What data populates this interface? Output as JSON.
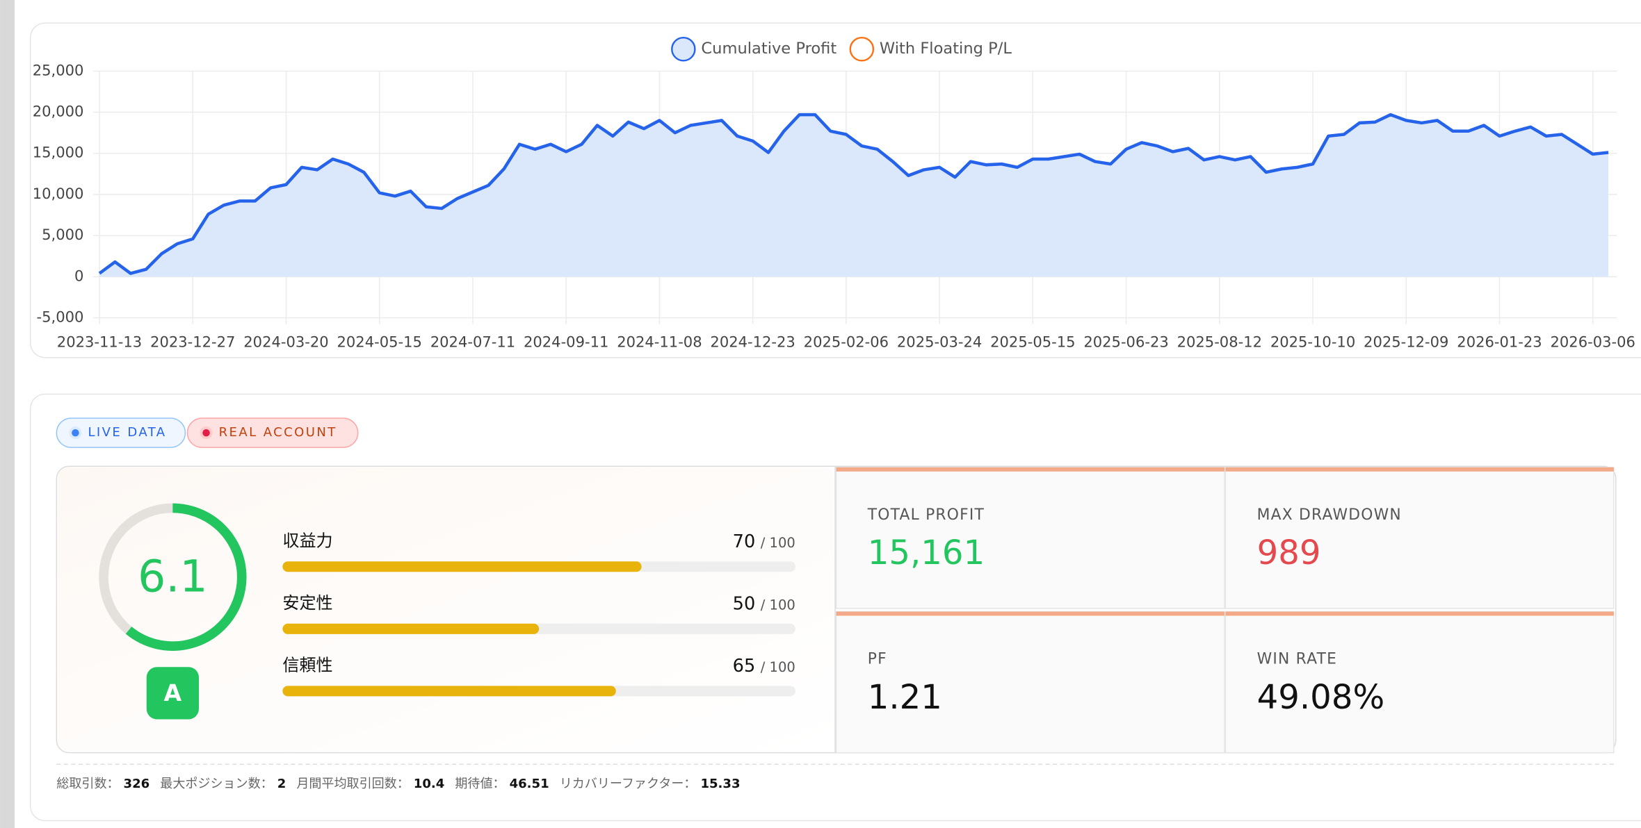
{
  "chart_data": {
    "type": "line",
    "categories": [
      "2023-11-13",
      null,
      null,
      null,
      null,
      null,
      "2023-12-27",
      null,
      null,
      null,
      null,
      null,
      "2024-03-20",
      null,
      null,
      null,
      null,
      null,
      "2024-05-15",
      null,
      null,
      null,
      null,
      null,
      "2024-07-11",
      null,
      null,
      null,
      null,
      null,
      "2024-09-11",
      null,
      null,
      null,
      null,
      null,
      "2024-11-08",
      null,
      null,
      null,
      null,
      null,
      "2024-12-23",
      null,
      null,
      null,
      null,
      null,
      "2025-02-06",
      null,
      null,
      null,
      null,
      null,
      "2025-03-24",
      null,
      null,
      null,
      null,
      null,
      "2025-05-15",
      null,
      null,
      null,
      null,
      null,
      "2025-06-23",
      null,
      null,
      null,
      null,
      null,
      "2025-08-12",
      null,
      null,
      null,
      null,
      null,
      "2025-10-10",
      null,
      null,
      null,
      null,
      null,
      "2025-12-09",
      null,
      null,
      null,
      null,
      null,
      "2026-01-23",
      null,
      null,
      null,
      null,
      null,
      "2026-03-06",
      null
    ],
    "series": [
      {
        "name": "Cumulative Profit",
        "color": "#2563eb",
        "fill": "#dbe7fb",
        "values": [
          400,
          1800,
          400,
          900,
          2800,
          4000,
          4600,
          7600,
          8700,
          9200,
          9200,
          10800,
          11200,
          13300,
          13000,
          14300,
          13700,
          12700,
          10200,
          9800,
          10400,
          8500,
          8300,
          9500,
          10300,
          11100,
          13100,
          16100,
          15500,
          16100,
          15200,
          16100,
          18400,
          17100,
          18800,
          18000,
          19000,
          17500,
          18400,
          18700,
          19000,
          17100,
          16500,
          15100,
          17700,
          19700,
          19700,
          17700,
          17300,
          15900,
          15500,
          14000,
          12300,
          13000,
          13300,
          12100,
          14000,
          13600,
          13700,
          13300,
          14300,
          14300,
          14600,
          14900,
          14000,
          13700,
          15500,
          16300,
          15900,
          15200,
          15600,
          14200,
          14600,
          14200,
          14600,
          12700,
          13100,
          13300,
          13700,
          17100,
          17300,
          18700,
          18800,
          19700,
          19000,
          18700,
          19000,
          17700,
          17700,
          18400,
          17100,
          17700,
          18200,
          17100,
          17300,
          16100,
          14900,
          15100
        ]
      },
      {
        "name": "With Floating P/L",
        "color": "#f97316",
        "values": [
          null,
          null,
          null,
          null,
          null,
          null,
          null,
          null,
          null,
          null,
          null,
          null,
          null,
          null,
          null,
          null,
          null,
          null,
          null,
          null,
          null,
          null,
          null,
          null,
          null,
          null,
          null,
          null,
          null,
          null,
          null,
          null,
          null,
          null,
          null,
          null,
          null,
          null,
          null,
          null,
          null,
          null,
          null,
          null,
          null,
          null,
          null,
          null,
          null,
          null,
          null,
          null,
          null,
          null,
          null,
          null,
          null,
          null,
          null,
          null,
          null,
          null,
          null,
          null,
          null,
          null,
          null,
          null,
          null,
          null,
          null,
          null,
          null,
          null,
          null,
          null,
          null,
          null,
          null,
          null,
          null,
          null,
          null,
          null,
          null,
          null,
          null,
          null,
          null,
          null,
          null,
          null,
          null,
          null,
          null,
          null,
          null,
          null
        ]
      }
    ],
    "ylim": [
      -5000,
      25000
    ],
    "yticks": [
      {
        "value": -5000,
        "label": "-5,000"
      },
      0,
      {
        "value": 5000,
        "label": "5,000"
      },
      {
        "value": 10000,
        "label": "10,000"
      },
      {
        "value": 15000,
        "label": "15,000"
      },
      {
        "value": 20000,
        "label": "20,000"
      },
      {
        "value": 25000,
        "label": "25,000"
      }
    ],
    "grid": true,
    "legend": "top"
  },
  "badges": [
    "LIVE DATA",
    "REAL ACCOUNT"
  ],
  "score": {
    "value": 6.1,
    "gauge_lim": [
      0,
      10
    ],
    "grade": "A",
    "color": "#22c55e"
  },
  "ratings": [
    {
      "label": "収益力",
      "value": 70,
      "max": {
        "value": 100,
        "label": "/ 100"
      }
    },
    {
      "label": "安定性",
      "value": 50,
      "max": {
        "value": 100,
        "label": "/ 100"
      }
    },
    {
      "label": "信頼性",
      "value": 65,
      "max": {
        "value": 100,
        "label": "/ 100"
      }
    }
  ],
  "metrics": [
    {
      "label": "TOTAL PROFIT",
      "value": {
        "value": 15161,
        "label": "15,161"
      },
      "color": "#22c55e"
    },
    {
      "label": "MAX DRAWDOWN",
      "value": 989,
      "color": "#e5484d"
    },
    {
      "label": "PF",
      "value": 1.21,
      "color": "#111111"
    },
    {
      "label": "WIN RATE",
      "value": {
        "value": 49.08,
        "label": "49.08%"
      },
      "color": "#111111"
    }
  ],
  "stats": [
    {
      "label": "総取引数：",
      "value": 326
    },
    {
      "label": "最大ポジション数：",
      "value": 2
    },
    {
      "label": "月間平均取引回数：",
      "value": 10.4
    },
    {
      "label": "期待値：",
      "value": 46.51
    },
    {
      "label": "リカバリーファクター：",
      "value": 15.33
    }
  ]
}
